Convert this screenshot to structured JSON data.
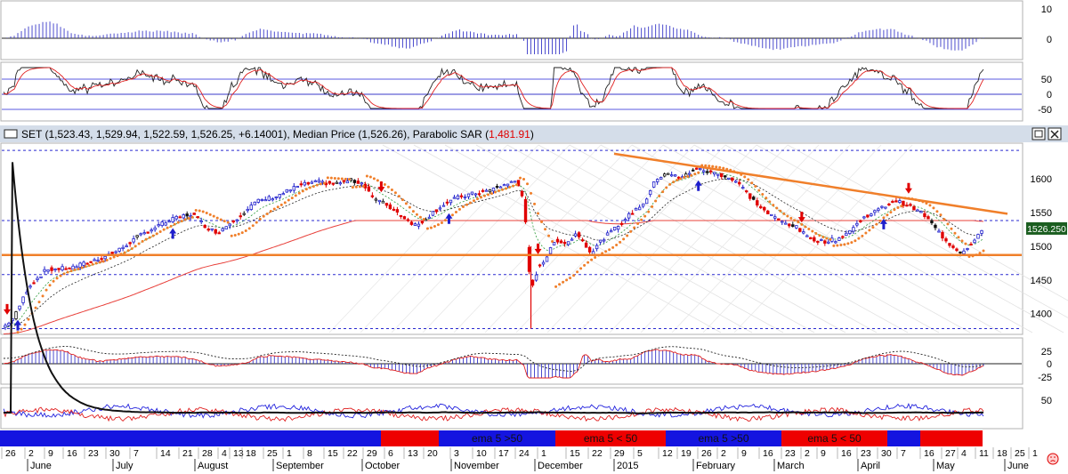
{
  "header": {
    "title": "SET (1,523.43, 1,529.94, 1,522.59, 1,526.25, +6.14001), Median Price (1,526.26), Parabolic SAR (",
    "sar_value": "1,481.91",
    "sar_suffix": ")",
    "restore_icon": "restore-icon",
    "close_icon": "close-icon"
  },
  "colors": {
    "up": "#1f1fcc",
    "down": "#e00000",
    "sar": "#f07f2a",
    "ema200": "#e8403a",
    "trend": "#f07f2a",
    "cur_bg": "#1b5e20",
    "band_blue": "#1414e0",
    "band_red": "#ee0000"
  },
  "panels": {
    "hist_ticks": [
      "10",
      "0"
    ],
    "stoch_ticks": [
      "50",
      "0",
      "-50"
    ],
    "macd_ticks": [
      "25",
      "0",
      "-25"
    ],
    "rsi_ticks": [
      "50"
    ]
  },
  "chart_data": {
    "type": "candlestick",
    "y_ticks": [
      1400,
      1450,
      1500,
      1550,
      1600
    ],
    "ylim": [
      1372,
      1650
    ],
    "current_price": "1526.250",
    "levels": {
      "support": 1487,
      "lower_dash": 1458,
      "upper_dash": 1538,
      "bottom_dash": 1378,
      "top_dash": 1642
    },
    "trendline": {
      "from": [
        "Jan 16",
        1637
      ],
      "to": [
        "May 21",
        1548
      ]
    },
    "price_path": [
      [
        0,
        1380
      ],
      [
        6,
        1395
      ],
      [
        14,
        1440
      ],
      [
        24,
        1465
      ],
      [
        38,
        1468
      ],
      [
        52,
        1480
      ],
      [
        64,
        1493
      ],
      [
        76,
        1515
      ],
      [
        88,
        1532
      ],
      [
        98,
        1543
      ],
      [
        106,
        1548
      ],
      [
        114,
        1528
      ],
      [
        120,
        1520
      ],
      [
        130,
        1540
      ],
      [
        142,
        1566
      ],
      [
        154,
        1575
      ],
      [
        166,
        1590
      ],
      [
        176,
        1595
      ],
      [
        186,
        1592
      ],
      [
        194,
        1598
      ],
      [
        202,
        1593
      ],
      [
        208,
        1570
      ],
      [
        214,
        1563
      ],
      [
        220,
        1552
      ],
      [
        226,
        1540
      ],
      [
        232,
        1530
      ],
      [
        240,
        1548
      ],
      [
        248,
        1564
      ],
      [
        256,
        1573
      ],
      [
        264,
        1578
      ],
      [
        272,
        1582
      ],
      [
        280,
        1590
      ],
      [
        288,
        1597
      ],
      [
        292,
        1570
      ],
      [
        295,
        1460
      ],
      [
        297,
        1440
      ],
      [
        300,
        1470
      ],
      [
        304,
        1480
      ],
      [
        310,
        1510
      ],
      [
        316,
        1504
      ],
      [
        322,
        1520
      ],
      [
        330,
        1490
      ],
      [
        336,
        1510
      ],
      [
        344,
        1528
      ],
      [
        352,
        1548
      ],
      [
        360,
        1566
      ],
      [
        366,
        1598
      ],
      [
        372,
        1610
      ],
      [
        380,
        1600
      ],
      [
        388,
        1615
      ],
      [
        396,
        1610
      ],
      [
        404,
        1605
      ],
      [
        412,
        1595
      ],
      [
        420,
        1570
      ],
      [
        428,
        1550
      ],
      [
        436,
        1537
      ],
      [
        444,
        1530
      ],
      [
        452,
        1512
      ],
      [
        460,
        1507
      ],
      [
        468,
        1510
      ],
      [
        476,
        1525
      ],
      [
        484,
        1545
      ],
      [
        492,
        1555
      ],
      [
        500,
        1568
      ],
      [
        508,
        1560
      ],
      [
        516,
        1548
      ],
      [
        522,
        1530
      ],
      [
        530,
        1505
      ],
      [
        538,
        1490
      ],
      [
        544,
        1508
      ],
      [
        550,
        1526
      ]
    ],
    "bands": [
      {
        "label": "",
        "color": "blue",
        "x0": 0,
        "x1": 428
      },
      {
        "label": "",
        "color": "red",
        "x0": 428,
        "x1": 493
      },
      {
        "label": "ema 5 >50",
        "color": "blue",
        "x0": 493,
        "x1": 624
      },
      {
        "label": "ema 5 < 50",
        "color": "red",
        "x0": 624,
        "x1": 748
      },
      {
        "label": "ema 5 >50",
        "color": "blue",
        "x0": 748,
        "x1": 878
      },
      {
        "label": "ema 5 < 50",
        "color": "red",
        "x0": 878,
        "x1": 997
      },
      {
        "label": "",
        "color": "blue",
        "x0": 997,
        "x1": 1034
      },
      {
        "label": "",
        "color": "red",
        "x0": 1034,
        "x1": 1104
      }
    ],
    "date_labels": [
      {
        "t": "26",
        "x": 6
      },
      {
        "t": "2",
        "x": 32
      },
      {
        "t": "9",
        "x": 54
      },
      {
        "t": "16",
        "x": 75
      },
      {
        "t": "23",
        "x": 99
      },
      {
        "t": "30",
        "x": 123
      },
      {
        "t": "7",
        "x": 150
      },
      {
        "t": "14",
        "x": 180
      },
      {
        "t": "21",
        "x": 205
      },
      {
        "t": "28",
        "x": 227
      },
      {
        "t": "4",
        "x": 249
      },
      {
        "t": "13",
        "x": 262
      },
      {
        "t": "18",
        "x": 276
      },
      {
        "t": "25",
        "x": 300
      },
      {
        "t": "1",
        "x": 322
      },
      {
        "t": "8",
        "x": 345
      },
      {
        "t": "15",
        "x": 368
      },
      {
        "t": "22",
        "x": 390
      },
      {
        "t": "29",
        "x": 412
      },
      {
        "t": "6",
        "x": 436
      },
      {
        "t": "13",
        "x": 458
      },
      {
        "t": "20",
        "x": 480
      },
      {
        "t": "3",
        "x": 510
      },
      {
        "t": "10",
        "x": 535
      },
      {
        "t": "17",
        "x": 560
      },
      {
        "t": "24",
        "x": 583
      },
      {
        "t": "1",
        "x": 608
      },
      {
        "t": "15",
        "x": 640
      },
      {
        "t": "22",
        "x": 665
      },
      {
        "t": "29",
        "x": 690
      },
      {
        "t": "5",
        "x": 716
      },
      {
        "t": "12",
        "x": 744
      },
      {
        "t": "19",
        "x": 765
      },
      {
        "t": "26",
        "x": 788
      },
      {
        "t": "2",
        "x": 810
      },
      {
        "t": "9",
        "x": 833
      },
      {
        "t": "16",
        "x": 857
      },
      {
        "t": "23",
        "x": 882
      },
      {
        "t": "2",
        "x": 904
      },
      {
        "t": "9",
        "x": 922
      },
      {
        "t": "16",
        "x": 945
      },
      {
        "t": "23",
        "x": 967
      },
      {
        "t": "30",
        "x": 990
      },
      {
        "t": "7",
        "x": 1012
      },
      {
        "t": "16",
        "x": 1038
      },
      {
        "t": "27",
        "x": 1062
      },
      {
        "t": "4",
        "x": 1080
      },
      {
        "t": "11",
        "x": 1100
      },
      {
        "t": "18",
        "x": 1120
      },
      {
        "t": "25",
        "x": 1140
      },
      {
        "t": "1",
        "x": 1160
      }
    ],
    "month_labels": [
      {
        "t": "June",
        "x": 34
      },
      {
        "t": "July",
        "x": 130
      },
      {
        "t": "August",
        "x": 222
      },
      {
        "t": "September",
        "x": 310
      },
      {
        "t": "October",
        "x": 410
      },
      {
        "t": "November",
        "x": 510
      },
      {
        "t": "December",
        "x": 604
      },
      {
        "t": "2015",
        "x": 693
      },
      {
        "t": "February",
        "x": 782
      },
      {
        "t": "March",
        "x": 873
      },
      {
        "t": "April",
        "x": 967
      },
      {
        "t": "May",
        "x": 1052
      },
      {
        "t": "June",
        "x": 1132
      }
    ]
  }
}
